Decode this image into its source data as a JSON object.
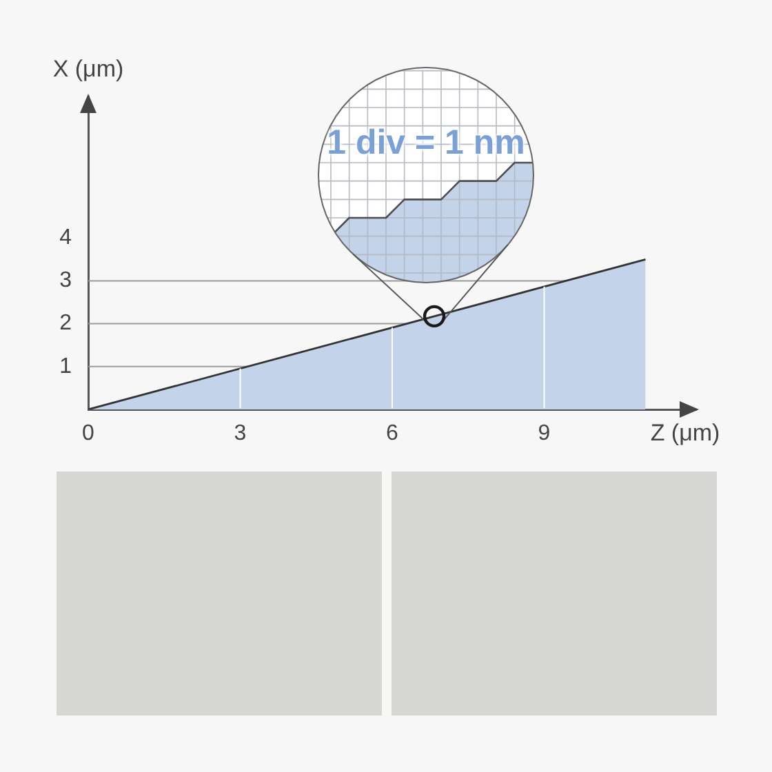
{
  "chart_data": {
    "type": "area",
    "xlabel": "Z (μm)",
    "ylabel": "X (μm)",
    "x": [
      0,
      11
    ],
    "values": [
      0,
      3.5
    ],
    "color": "#c3d3ea",
    "xlim": [
      0,
      12
    ],
    "ylim": [
      0,
      7.3
    ],
    "xticks": [
      0,
      3,
      6,
      9
    ],
    "yticks": [
      1,
      2,
      3,
      4
    ],
    "grid": true,
    "annotations": [
      "1 div = 1 nm"
    ]
  }
}
